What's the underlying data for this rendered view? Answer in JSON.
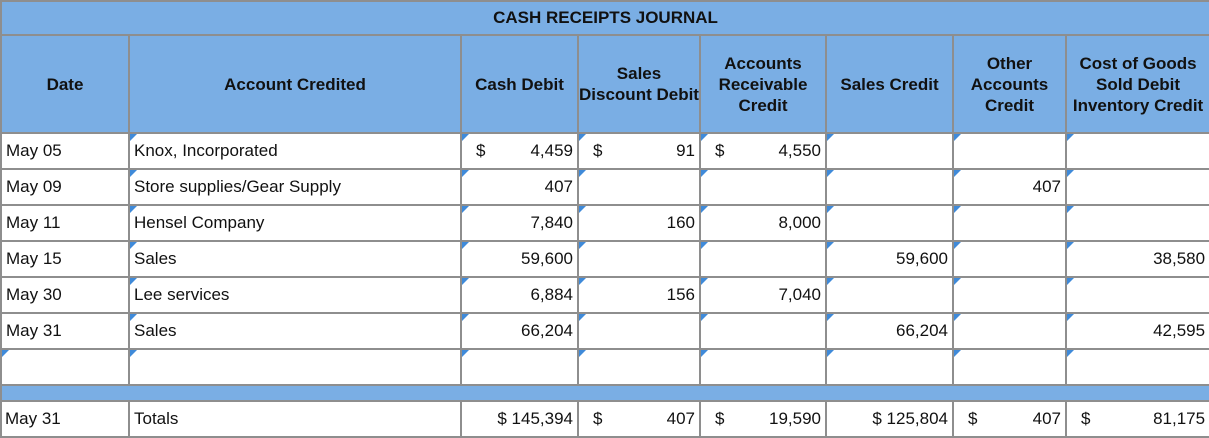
{
  "title": "CASH RECEIPTS JOURNAL",
  "headers": {
    "date": "Date",
    "account": "Account Credited",
    "cash": "Cash Debit",
    "discount": "Sales Discount Debit",
    "ar": "Accounts Receivable Credit",
    "sales": "Sales Credit",
    "other": "Other Accounts Credit",
    "cogs": "Cost of Goods Sold Debit Inventory Credit"
  },
  "rows": [
    {
      "date": "May 05",
      "account": "Knox, Incorporated",
      "cash_cur": "$",
      "cash": "4,459",
      "disc_cur": "$",
      "disc": "91",
      "ar_cur": "$",
      "ar": "4,550",
      "sales": "",
      "other": "",
      "cogs": ""
    },
    {
      "date": "May 09",
      "account": "Store supplies/Gear Supply",
      "cash": "407",
      "disc": "",
      "ar": "",
      "sales": "",
      "other": "407",
      "cogs": ""
    },
    {
      "date": "May 11",
      "account": "Hensel Company",
      "cash": "7,840",
      "disc": "160",
      "ar": "8,000",
      "sales": "",
      "other": "",
      "cogs": ""
    },
    {
      "date": "May 15",
      "account": "Sales",
      "cash": "59,600",
      "disc": "",
      "ar": "",
      "sales": "59,600",
      "other": "",
      "cogs": "38,580"
    },
    {
      "date": "May 30",
      "account": "Lee services",
      "cash": "6,884",
      "disc": "156",
      "ar": "7,040",
      "sales": "",
      "other": "",
      "cogs": ""
    },
    {
      "date": "May 31",
      "account": "Sales",
      "cash": "66,204",
      "disc": "",
      "ar": "",
      "sales": "66,204",
      "other": "",
      "cogs": "42,595"
    }
  ],
  "totals": {
    "date": "May 31",
    "label": "Totals",
    "cash": "$ 145,394",
    "disc_cur": "$",
    "disc": "407",
    "ar_cur": "$",
    "ar": "19,590",
    "sales": "$ 125,804",
    "other_cur": "$",
    "other": "407",
    "cogs_cur": "$",
    "cogs": "81,175"
  },
  "colors": {
    "header_bg": "#7aaee4",
    "border": "#8e8e8e",
    "input_marker": "#3f8ad9"
  }
}
